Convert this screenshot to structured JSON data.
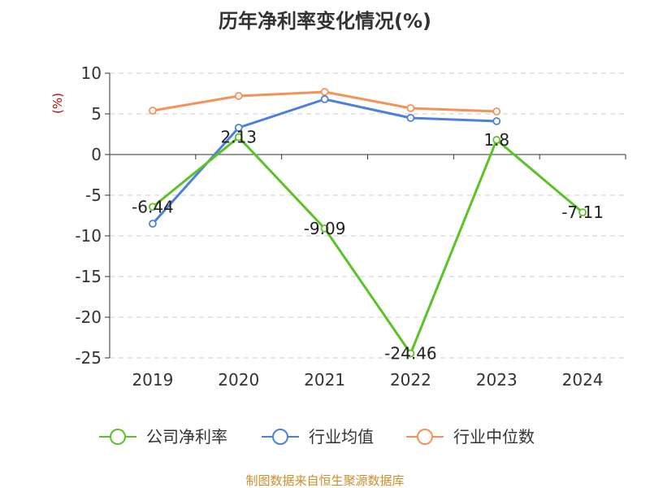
{
  "chart_data": {
    "type": "line",
    "title": "历年净利率变化情况(%)",
    "ylabel": "(%)",
    "xlabel": "",
    "categories": [
      "2019",
      "2020",
      "2021",
      "2022",
      "2023",
      "2024"
    ],
    "ylim": [
      -25,
      10
    ],
    "yticks": [
      10,
      5,
      0,
      -5,
      -10,
      -15,
      -20,
      -25
    ],
    "grid": true,
    "legend_position": "bottom",
    "series": [
      {
        "name": "公司净利率",
        "color": "#5bc228",
        "values": [
          -6.44,
          2.13,
          -9.09,
          -24.46,
          1.8,
          -7.11
        ],
        "data_labels": [
          "-6.44",
          "2.13",
          "-9.09",
          "-24.46",
          "1.8",
          "-7.11"
        ]
      },
      {
        "name": "行业均值",
        "color": "#4f7fdc",
        "values": [
          -8.5,
          3.3,
          6.8,
          4.5,
          4.1,
          null
        ]
      },
      {
        "name": "行业中位数",
        "color": "#f5925a",
        "values": [
          5.4,
          7.2,
          7.7,
          5.7,
          5.3,
          null
        ]
      }
    ]
  },
  "source_text": "制图数据来自恒生聚源数据库"
}
